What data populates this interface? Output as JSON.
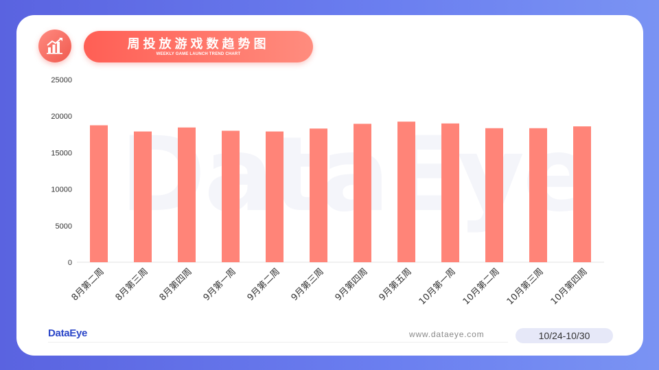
{
  "header": {
    "title": "周投放游戏数趋势图",
    "subtitle": "WEEKLY GAME LAUNCH TREND CHART",
    "icon": "bar-chart-trend-icon"
  },
  "watermark": "DataEye",
  "footer": {
    "brand": "DataEye",
    "url": "www.dataeye.com",
    "date_range": "10/24-10/30"
  },
  "colors": {
    "bar": "#ff8478",
    "accent": "#f05a4f",
    "brand": "#2b46c8"
  },
  "chart_data": {
    "type": "bar",
    "categories": [
      "8月第二周",
      "8月第三周",
      "8月第四周",
      "9月第一周",
      "9月第二周",
      "9月第三周",
      "9月第四周",
      "9月第五周",
      "10月第一周",
      "10月第二周",
      "10月第三周",
      "10月第四周"
    ],
    "values": [
      18750,
      17900,
      18450,
      18000,
      17900,
      18300,
      18950,
      19250,
      19000,
      18350,
      18350,
      18600
    ],
    "ylim": [
      0,
      25000
    ],
    "yticks": [
      0,
      5000,
      10000,
      15000,
      20000,
      25000
    ],
    "grid": false,
    "legend": "none"
  }
}
